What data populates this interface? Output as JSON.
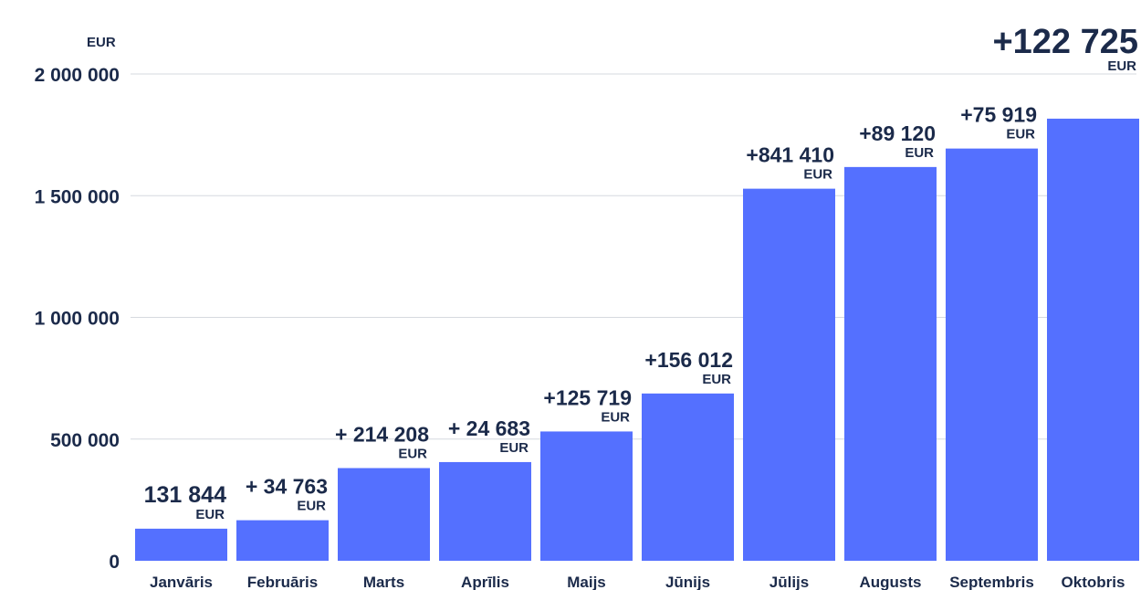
{
  "chart_data": {
    "type": "bar",
    "y_unit": "EUR",
    "ylim": [
      0,
      2000000
    ],
    "y_ticks": [
      "0",
      "500 000",
      "1 000 000",
      "1 500 000",
      "2 000 000"
    ],
    "y_tick_values": [
      0,
      500000,
      1000000,
      1500000,
      2000000
    ],
    "grid": true,
    "bar_color": "#5470ff",
    "text_color": "#1b2a4a",
    "categories": [
      "Janvāris",
      "Februāris",
      "Marts",
      "Aprīlis",
      "Maijs",
      "Jūnijs",
      "Jūlijs",
      "Augusts",
      "Septembris",
      "Oktobris"
    ],
    "values": [
      131844,
      166607,
      380815,
      405498,
      531217,
      687229,
      1528639,
      1617759,
      1693678,
      1816403
    ],
    "data_labels": [
      "131 844",
      "+ 34 763",
      "+ 214 208",
      "+ 24 683",
      "+125 719",
      "+156 012",
      "+841 410",
      "+89 120",
      "+75 919",
      "+122 725"
    ],
    "data_label_unit": "EUR"
  }
}
